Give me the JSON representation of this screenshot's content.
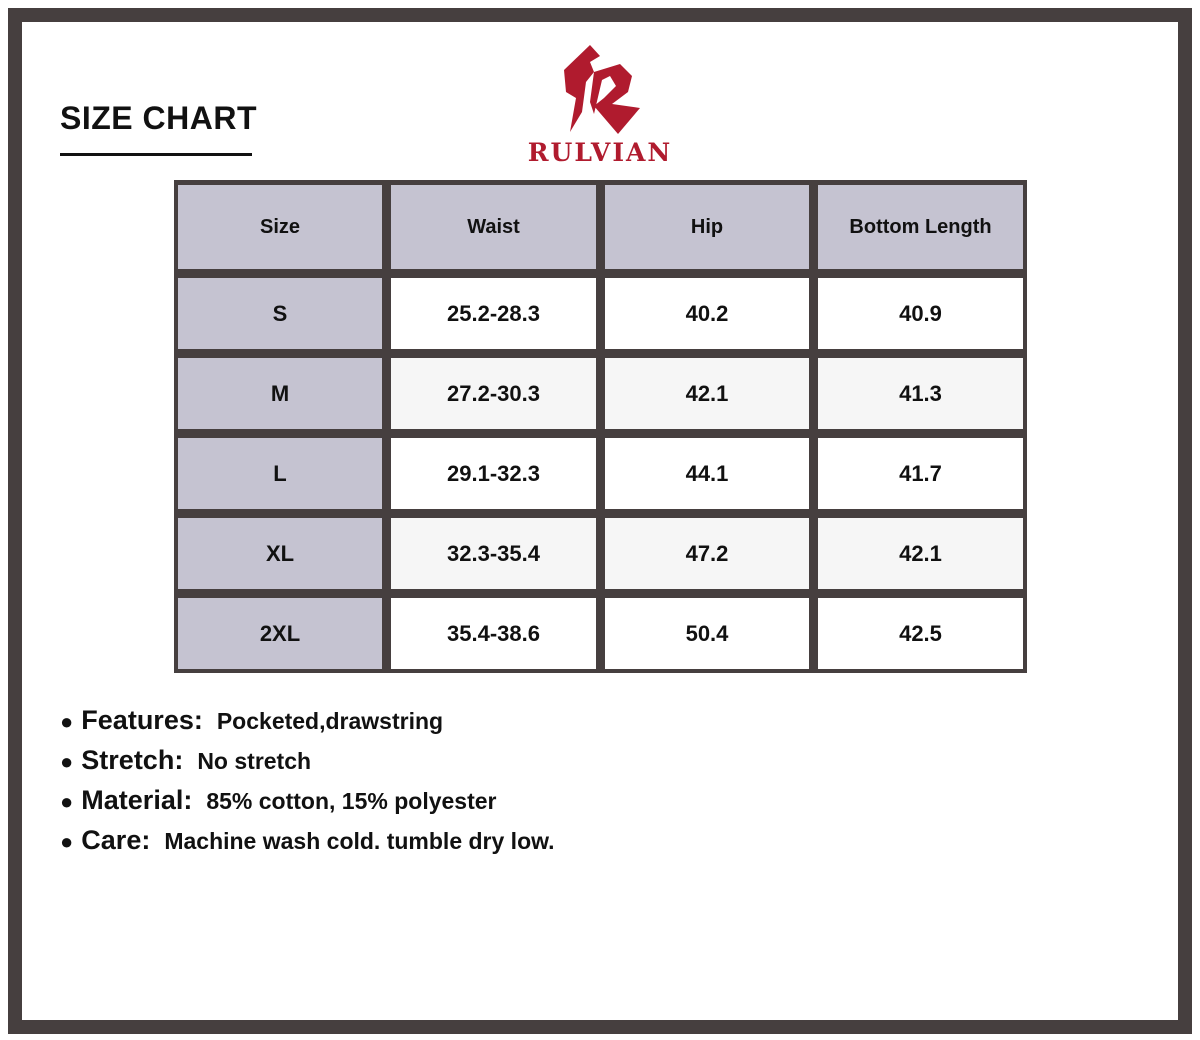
{
  "title": "SIZE CHART",
  "brand": {
    "name": "RULVIAN",
    "color": "#b01b2e"
  },
  "table": {
    "headers": [
      "Size",
      "Waist",
      "Hip",
      "Bottom Length"
    ],
    "rows": [
      [
        "S",
        "25.2-28.3",
        "40.2",
        "40.9"
      ],
      [
        "M",
        "27.2-30.3",
        "42.1",
        "41.3"
      ],
      [
        "L",
        "29.1-32.3",
        "44.1",
        "41.7"
      ],
      [
        "XL",
        "32.3-35.4",
        "47.2",
        "42.1"
      ],
      [
        "2XL",
        "35.4-38.6",
        "50.4",
        "42.5"
      ]
    ]
  },
  "notes": [
    {
      "label": "Features:",
      "value": "Pocketed,drawstring"
    },
    {
      "label": "Stretch:",
      "value": "No stretch"
    },
    {
      "label": "Material:",
      "value": "85% cotton, 15% polyester"
    },
    {
      "label": "Care:",
      "value": "Machine wash cold. tumble dry low."
    }
  ]
}
